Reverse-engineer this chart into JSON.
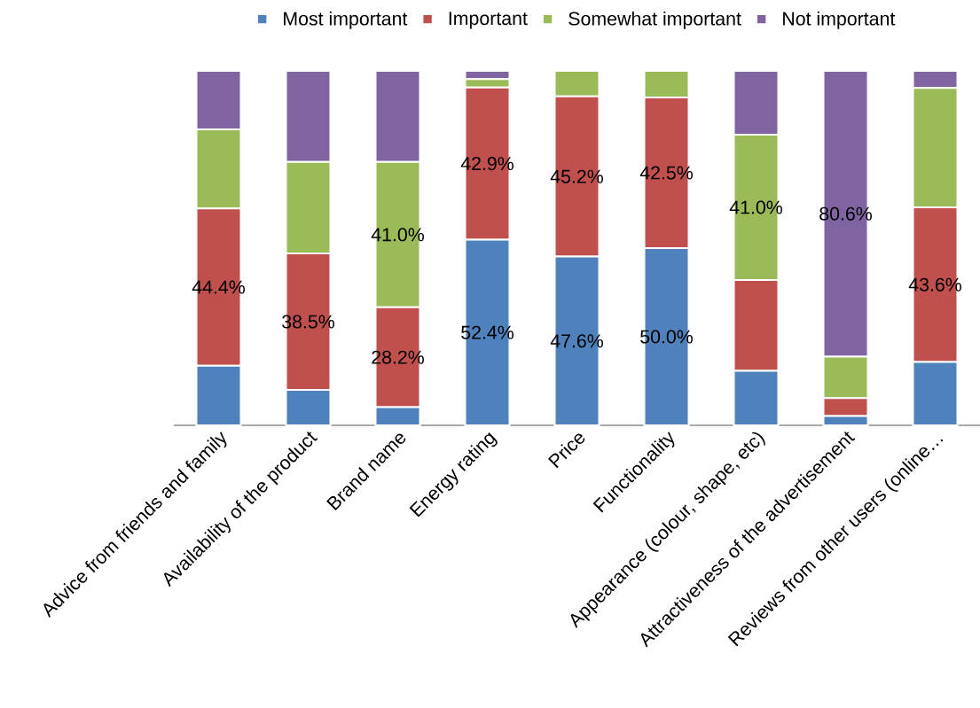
{
  "chart_data": {
    "type": "bar",
    "stacked": true,
    "legend": "top",
    "tick_labels": "x",
    "categories": [
      "Advice from friends and family",
      "Availability of the product",
      "Brand name",
      "Energy rating",
      "Price",
      "Functionality",
      "Appearance (colour, shape, etc)",
      "Attractiveness of the advertisement",
      "Reviews from other users (online…"
    ],
    "series": [
      {
        "name": "Most important",
        "color": "#4f81bd",
        "values": [
          16.8,
          10.0,
          5.1,
          52.4,
          47.6,
          50.0,
          15.4,
          2.6,
          17.9
        ],
        "value_labels": [
          null,
          null,
          null,
          "52.4%",
          "47.6%",
          "50.0%",
          null,
          null,
          null
        ]
      },
      {
        "name": "Important",
        "color": "#c0504d",
        "values": [
          44.4,
          38.5,
          28.2,
          42.9,
          45.2,
          42.5,
          25.6,
          5.1,
          43.6
        ],
        "value_labels": [
          "44.4%",
          "38.5%",
          "28.2%",
          "42.9%",
          "45.2%",
          "42.5%",
          null,
          null,
          "43.6%"
        ]
      },
      {
        "name": "Somewhat important",
        "color": "#9bbb59",
        "values": [
          22.3,
          25.8,
          41.0,
          2.4,
          7.2,
          7.5,
          41.0,
          11.7,
          33.7
        ],
        "value_labels": [
          null,
          null,
          "41.0%",
          null,
          null,
          null,
          "41.0%",
          null,
          null
        ]
      },
      {
        "name": "Not important",
        "color": "#8064a2",
        "values": [
          16.5,
          25.7,
          25.7,
          2.3,
          0.0,
          0.0,
          18.0,
          80.6,
          4.8
        ],
        "value_labels": [
          null,
          null,
          null,
          null,
          null,
          null,
          null,
          "80.6%",
          null
        ]
      }
    ]
  }
}
